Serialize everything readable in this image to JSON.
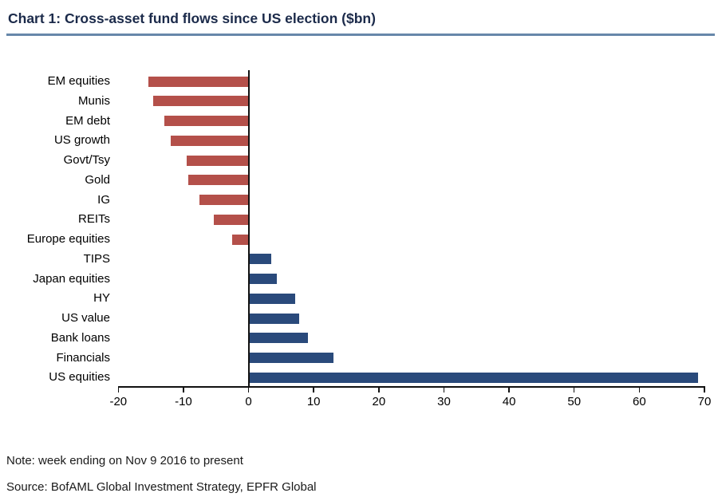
{
  "title": "Chart 1: Cross-asset fund flows since US election ($bn)",
  "note": "Note: week ending on Nov 9 2016 to present",
  "source": "Source: BofAML Global Investment Strategy, EPFR Global",
  "colors": {
    "title_text": "#1b2a4a",
    "title_rule": "#6787aa",
    "negative_bar": "#b4504a",
    "positive_bar": "#2a4a7b",
    "axis": "#111111",
    "label_text": "#000000"
  },
  "chart_data": {
    "type": "bar",
    "orientation": "horizontal",
    "title": "Chart 1: Cross-asset fund flows since US election ($bn)",
    "xlabel": "",
    "ylabel": "",
    "categories": [
      "EM equities",
      "Munis",
      "EM debt",
      "US growth",
      "Govt/Tsy",
      "Gold",
      "IG",
      "REITs",
      "Europe equities",
      "TIPS",
      "Japan equities",
      "HY",
      "US value",
      "Bank loans",
      "Financials",
      "US equities"
    ],
    "values": [
      -15.4,
      -14.6,
      -12.9,
      -11.9,
      -9.5,
      -9.3,
      -7.6,
      -5.3,
      -2.5,
      3.5,
      4.4,
      7.1,
      7.8,
      9.1,
      13.0,
      69.0
    ],
    "xlim": [
      -20,
      70
    ],
    "xticks": [
      -20,
      -10,
      0,
      10,
      20,
      30,
      40,
      50,
      60,
      70
    ],
    "xtick_labels": [
      "-20",
      "-10",
      "0",
      "10",
      "20",
      "30",
      "40",
      "50",
      "60",
      "70"
    ],
    "grid": false,
    "legend": null
  }
}
